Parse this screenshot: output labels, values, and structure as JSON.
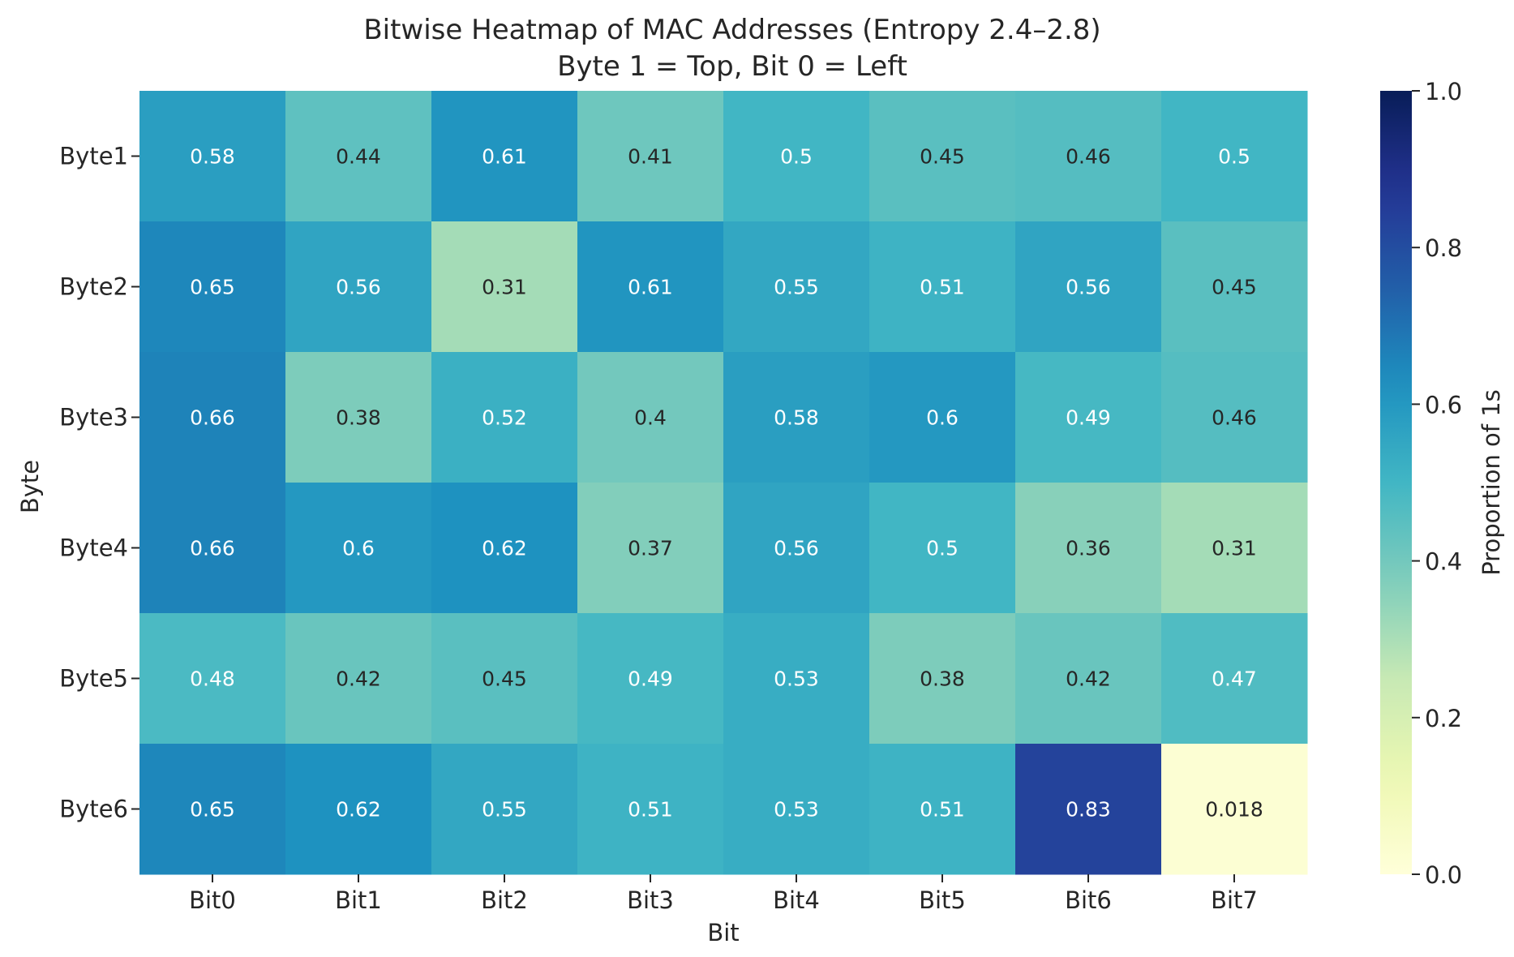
{
  "chart_data": {
    "type": "heatmap",
    "title": "Bitwise Heatmap of MAC Addresses (Entropy 2.4–2.8)",
    "subtitle": "Byte 1 = Top, Bit 0 = Left",
    "xlabel": "Bit",
    "ylabel": "Byte",
    "x_categories": [
      "Bit0",
      "Bit1",
      "Bit2",
      "Bit3",
      "Bit4",
      "Bit5",
      "Bit6",
      "Bit7"
    ],
    "y_categories": [
      "Byte1",
      "Byte2",
      "Byte3",
      "Byte4",
      "Byte5",
      "Byte6"
    ],
    "values": [
      [
        0.58,
        0.44,
        0.61,
        0.41,
        0.5,
        0.45,
        0.46,
        0.5
      ],
      [
        0.65,
        0.56,
        0.31,
        0.61,
        0.55,
        0.51,
        0.56,
        0.45
      ],
      [
        0.66,
        0.38,
        0.52,
        0.4,
        0.58,
        0.6,
        0.49,
        0.46
      ],
      [
        0.66,
        0.6,
        0.62,
        0.37,
        0.56,
        0.5,
        0.36,
        0.31
      ],
      [
        0.48,
        0.42,
        0.45,
        0.49,
        0.53,
        0.38,
        0.42,
        0.47
      ],
      [
        0.65,
        0.62,
        0.55,
        0.51,
        0.53,
        0.51,
        0.83,
        0.018
      ]
    ],
    "colorbar": {
      "label": "Proportion of 1s",
      "range": [
        0.0,
        1.0
      ],
      "ticks": [
        0.0,
        0.2,
        0.4,
        0.6,
        0.8,
        1.0
      ],
      "tick_labels": [
        "0.0",
        "0.2",
        "0.4",
        "0.6",
        "0.8",
        "1.0"
      ],
      "colormap": "YlGnBu"
    }
  }
}
